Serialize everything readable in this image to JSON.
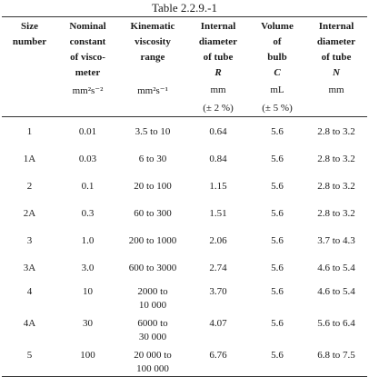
{
  "caption": "Table 2.2.9.-1",
  "headers": [
    {
      "lines": [
        "Size",
        "number"
      ],
      "sym": ""
    },
    {
      "lines": [
        "Nominal",
        "constant",
        "of visco-",
        "meter"
      ],
      "sym": ""
    },
    {
      "lines": [
        "Kinematic",
        "viscosity",
        "range"
      ],
      "sym": ""
    },
    {
      "lines": [
        "Internal",
        "diameter",
        "of tube"
      ],
      "sym": "R"
    },
    {
      "lines": [
        "Volume",
        "of",
        "bulb"
      ],
      "sym": "C"
    },
    {
      "lines": [
        "Internal",
        "diameter",
        "of tube"
      ],
      "sym": "N"
    }
  ],
  "units": [
    "",
    "mm²s⁻²",
    "mm²s⁻¹",
    "mm",
    "mL",
    "mm"
  ],
  "tolerances": [
    "",
    "",
    "",
    "(± 2 %)",
    "(± 5 %)",
    ""
  ],
  "rows": [
    {
      "size": "1",
      "constant": "0.01",
      "range": [
        "3.5 to 10"
      ],
      "diam_r": "0.64",
      "volume": "5.6",
      "diam_n": "2.8 to 3.2"
    },
    {
      "size": "1A",
      "constant": "0.03",
      "range": [
        "6 to 30"
      ],
      "diam_r": "0.84",
      "volume": "5.6",
      "diam_n": "2.8 to 3.2"
    },
    {
      "size": "2",
      "constant": "0.1",
      "range": [
        "20 to 100"
      ],
      "diam_r": "1.15",
      "volume": "5.6",
      "diam_n": "2.8 to 3.2"
    },
    {
      "size": "2A",
      "constant": "0.3",
      "range": [
        "60 to 300"
      ],
      "diam_r": "1.51",
      "volume": "5.6",
      "diam_n": "2.8 to 3.2"
    },
    {
      "size": "3",
      "constant": "1.0",
      "range": [
        "200 to 1000"
      ],
      "diam_r": "2.06",
      "volume": "5.6",
      "diam_n": "3.7 to 4.3"
    },
    {
      "size": "3A",
      "constant": "3.0",
      "range": [
        "600 to 3000"
      ],
      "diam_r": "2.74",
      "volume": "5.6",
      "diam_n": "4.6 to 5.4"
    },
    {
      "size": "4",
      "constant": "10",
      "range": [
        "2000 to",
        "10 000"
      ],
      "diam_r": "3.70",
      "volume": "5.6",
      "diam_n": "4.6 to 5.4"
    },
    {
      "size": "4A",
      "constant": "30",
      "range": [
        "6000 to",
        "30 000"
      ],
      "diam_r": "4.07",
      "volume": "5.6",
      "diam_n": "5.6 to 6.4"
    },
    {
      "size": "5",
      "constant": "100",
      "range": [
        "20 000 to",
        "100 000"
      ],
      "diam_r": "6.76",
      "volume": "5.6",
      "diam_n": "6.8 to 7.5"
    }
  ]
}
